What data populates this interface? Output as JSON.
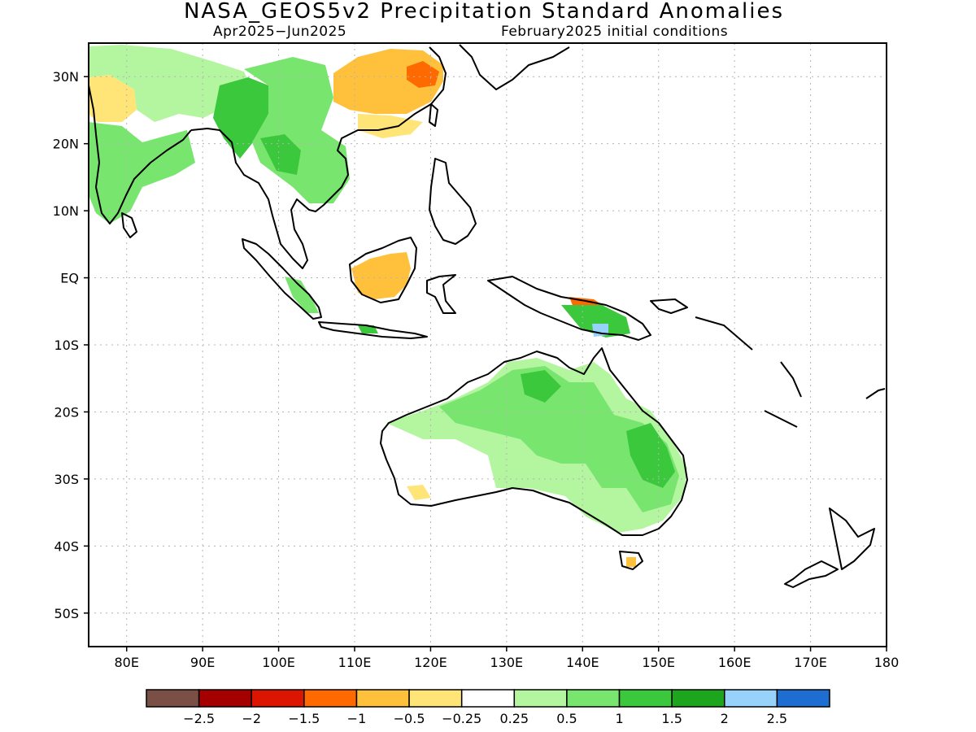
{
  "title": "NASA_GEOS5v2 Precipitation Standard Anomalies",
  "subtitle_left": "Apr2025−Jun2025",
  "subtitle_right": "February2025 initial conditions",
  "map": {
    "lon_range": [
      75,
      180
    ],
    "lat_range": [
      -55,
      35
    ],
    "lat_ticks": [
      {
        "lat": 30,
        "label": "30N"
      },
      {
        "lat": 20,
        "label": "20N"
      },
      {
        "lat": 10,
        "label": "10N"
      },
      {
        "lat": 0,
        "label": "EQ"
      },
      {
        "lat": -10,
        "label": "10S"
      },
      {
        "lat": -20,
        "label": "20S"
      },
      {
        "lat": -30,
        "label": "30S"
      },
      {
        "lat": -40,
        "label": "40S"
      },
      {
        "lat": -50,
        "label": "50S"
      }
    ],
    "lon_ticks": [
      {
        "lon": 80,
        "label": "80E"
      },
      {
        "lon": 90,
        "label": "90E"
      },
      {
        "lon": 100,
        "label": "100E"
      },
      {
        "lon": 110,
        "label": "110E"
      },
      {
        "lon": 120,
        "label": "120E"
      },
      {
        "lon": 130,
        "label": "130E"
      },
      {
        "lon": 140,
        "label": "140E"
      },
      {
        "lon": 150,
        "label": "150E"
      },
      {
        "lon": 160,
        "label": "160E"
      },
      {
        "lon": 170,
        "label": "170E"
      },
      {
        "lon": 180,
        "label": "180"
      }
    ],
    "grid": true
  },
  "legend": {
    "colors": [
      "#7a5046",
      "#a50000",
      "#dc1500",
      "#ff6a00",
      "#ffc03c",
      "#ffe478",
      "#ffffff",
      "#b4f5a0",
      "#78e66e",
      "#3cc83c",
      "#1ea51e",
      "#96d2fa",
      "#1e6ed2"
    ],
    "labels": [
      "−2.5",
      "−2",
      "−1.5",
      "−1",
      "−0.5",
      "−0.25",
      "0.25",
      "0.5",
      "1",
      "1.5",
      "2",
      "2.5"
    ]
  },
  "anomaly_regions": [
    {
      "region": "India / Bay of Bengal",
      "category": 0.5
    },
    {
      "region": "Himalaya / Myanmar",
      "category": 1
    },
    {
      "region": "Indochina",
      "category": 1
    },
    {
      "region": "Western India",
      "category": -0.5
    },
    {
      "region": "Eastern China",
      "category": -0.5
    },
    {
      "region": "Southeast China coast",
      "category": -1
    },
    {
      "region": "Borneo",
      "category": -0.5
    },
    {
      "region": "New Guinea north",
      "category": -1
    },
    {
      "region": "New Guinea south",
      "category": 1.5
    },
    {
      "region": "Northern and central Australia",
      "category": 1
    },
    {
      "region": "Eastern Australia",
      "category": 1
    },
    {
      "region": "Western Australia",
      "category": 0.25
    },
    {
      "region": "Southwest Australia",
      "category": -0.5
    },
    {
      "region": "Tasmania",
      "category": -0.5
    }
  ]
}
